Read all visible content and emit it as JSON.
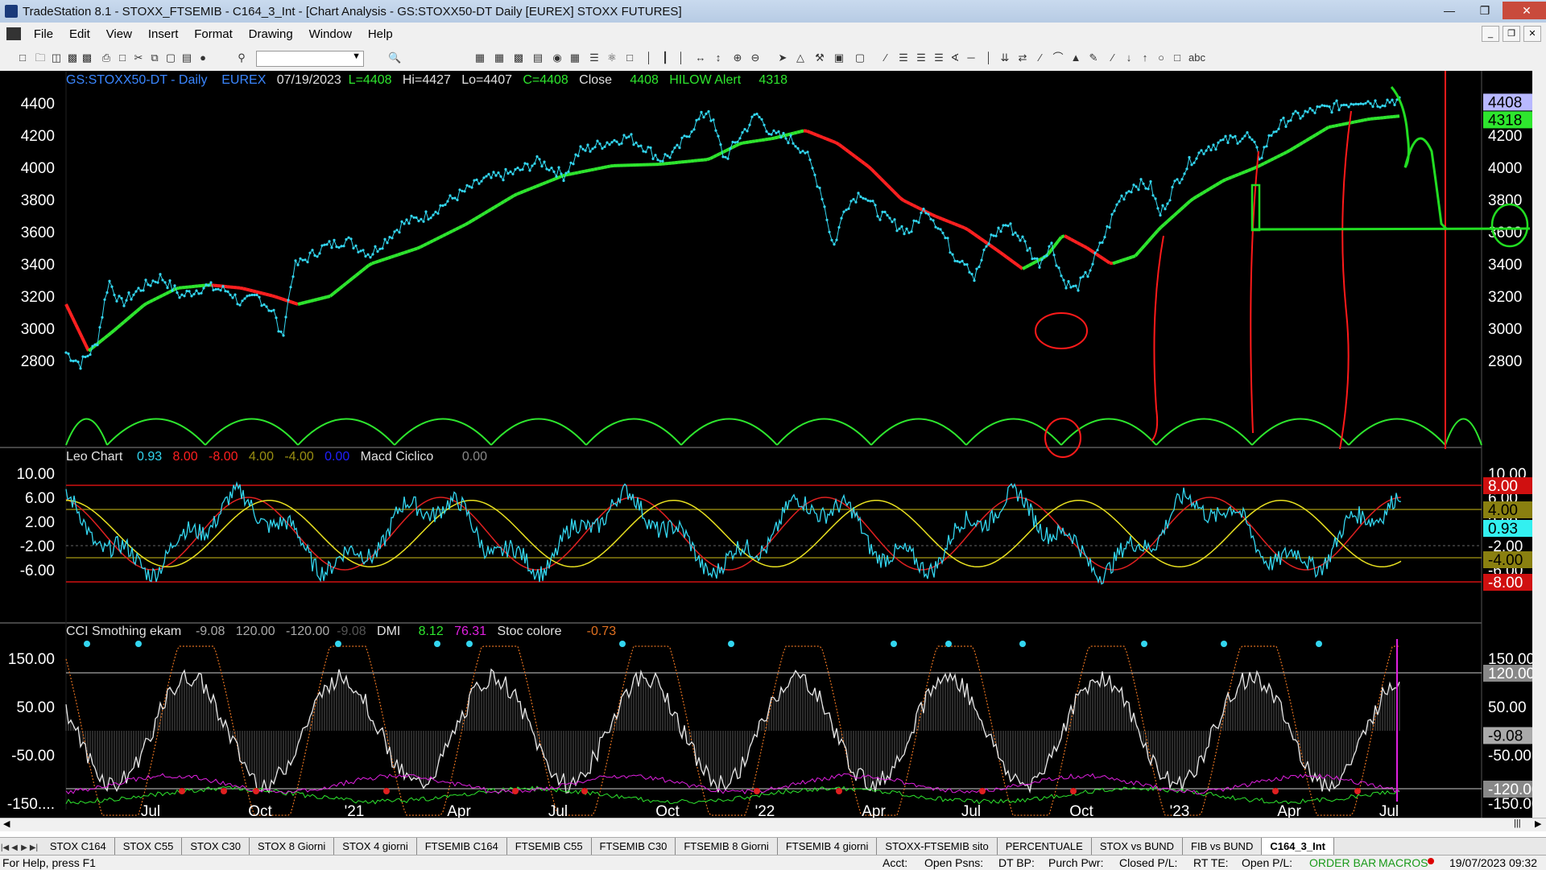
{
  "window": {
    "title": "TradeStation 8.1 - STOXX_FTSEMIB - C164_3_Int - [Chart Analysis - GS:STOXX50-DT  Daily  [EUREX] STOXX FUTURES]"
  },
  "menu": [
    "File",
    "Edit",
    "View",
    "Insert",
    "Format",
    "Drawing",
    "Window",
    "Help"
  ],
  "chart": {
    "header": {
      "symbol": "GS:STOXX50-DT - Daily",
      "exchange": "EUREX",
      "date": "07/19/2023",
      "last": "L=4408",
      "high": "Hi=4427",
      "low": "Lo=4407",
      "close": "C=4408",
      "close_label": "Close",
      "close_value": "4408",
      "hilow_label": "HILOW Alert",
      "hilow_value": "4318"
    },
    "price_axis": [
      "4400",
      "4200",
      "4000",
      "3800",
      "3600",
      "3400",
      "3200",
      "3000",
      "2800"
    ],
    "price_badges": {
      "last": "4408",
      "hilow": "4318"
    },
    "price_right_axis": [
      "4200",
      "4000",
      "3800",
      "3600",
      "3400",
      "3200",
      "3000",
      "2800"
    ],
    "macd_header": {
      "name": "Leo Chart",
      "v1": "0.93",
      "v2": "8.00",
      "v3": "-8.00",
      "v4": "4.00",
      "v5": "-4.00",
      "v6": "0.00",
      "name2": "Macd Ciclico",
      "v7": "0.00"
    },
    "macd_axis": [
      "10.00",
      "6.00",
      "2.00",
      "-2.00",
      "-6.00"
    ],
    "macd_right_axis": [
      "10.00",
      "6.00",
      "2.00",
      "-2.00",
      "-6.00"
    ],
    "macd_badges": {
      "upper": "8.00",
      "mid_upper": "4.00",
      "value": "0.93",
      "mid_lower": "-4.00",
      "lower": "-8.00"
    },
    "cci_header": {
      "name": "CCI Smothing ekam",
      "v1": "-9.08",
      "v2": "120.00",
      "v3": "-120.00",
      "v4": "-9.08",
      "dmi_label": "DMI",
      "dmi1": "8.12",
      "dmi2": "76.31",
      "stoc_label": "Stoc colore",
      "stoc": "-0.73"
    },
    "cci_axis": [
      "150.00",
      "50.00",
      "-50.00",
      "-150...."
    ],
    "cci_right_axis": [
      "150.00",
      "50.00",
      "-50.00",
      "-150.00"
    ],
    "cci_badges": {
      "upper": "120.00",
      "value": "-9.08",
      "lower": "-120.00"
    },
    "x_labels": [
      "Jul",
      "Oct",
      "'21",
      "Apr",
      "Jul",
      "Oct",
      "'22",
      "Apr",
      "Jul",
      "Oct",
      "'23",
      "Apr",
      "Jul"
    ]
  },
  "tabs": [
    "STOX C164",
    "STOX C55",
    "STOX  C30",
    "STOX  8 Giorni",
    "STOX 4 giorni",
    "FTSEMIB C164",
    "FTSEMIB C55",
    "FTSEMIB C30",
    "FTSEMIB  8 Giorni",
    "FTSEMIB  4 giorni",
    "STOXX-FTSEMIB sito",
    "PERCENTUALE",
    "STOX vs BUND",
    "FIB vs BUND",
    "C164_3_Int"
  ],
  "status": {
    "help": "For Help, press F1",
    "acct": "Acct:",
    "open_psns": "Open Psns:",
    "dt_bp": "DT BP:",
    "purch_pwr": "Purch Pwr:",
    "closed_pl": "Closed P/L:",
    "rt_te": "RT TE:",
    "open_pl": "Open P/L:",
    "order_bar": "ORDER BAR",
    "macros": "MACROS",
    "datetime": "19/07/2023 09:32"
  },
  "colors": {
    "background": "#000000",
    "price_dots": "#33d6f0",
    "ma_up": "#2ee62e",
    "ma_down": "#ff2020",
    "annotation_red": "#ff1a1a",
    "annotation_green": "#22dd22"
  }
}
